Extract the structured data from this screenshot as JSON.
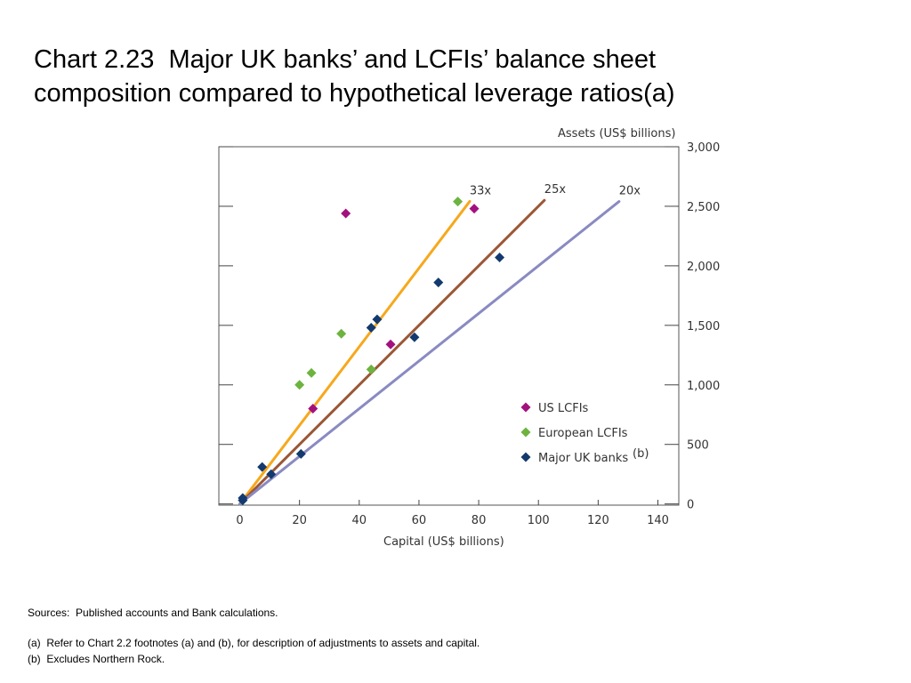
{
  "title": {
    "line1": "Chart 2.23  Major UK banks’ and LCFIs’ balance sheet",
    "line2": "composition compared to hypothetical leverage ratios(a)"
  },
  "chart_data": {
    "type": "scatter",
    "xlabel": "Capital (US$ billions)",
    "ylabel": "Assets (US$ billions)",
    "xlim": [
      -7,
      147
    ],
    "ylim": [
      -10,
      3000
    ],
    "x_ticks": [
      0,
      20,
      40,
      60,
      80,
      100,
      120,
      140
    ],
    "y_ticks": [
      0,
      500,
      1000,
      1500,
      2000,
      2500,
      3000
    ],
    "x_tick_labels": [
      "0",
      "20",
      "40",
      "60",
      "80",
      "100",
      "120",
      "140"
    ],
    "y_tick_labels": [
      "0",
      "500",
      "1,000",
      "1,500",
      "2,000",
      "2,500",
      "3,000"
    ],
    "y_axis_side": "right",
    "grid": false,
    "legend_position": "bottom-right",
    "lines": [
      {
        "name": "33x",
        "ratio": 33,
        "x_end": 77,
        "color": "#f6a81c"
      },
      {
        "name": "25x",
        "ratio": 25,
        "x_end": 102,
        "color": "#9b5736"
      },
      {
        "name": "20x",
        "ratio": 20,
        "x_end": 127,
        "color": "#8a8ac2"
      }
    ],
    "series": [
      {
        "name": "US LCFIs",
        "color": "#a3117e",
        "x": [
          35.5,
          78.5,
          50.5,
          24.5
        ],
        "y": [
          2440,
          2480,
          1340,
          800
        ]
      },
      {
        "name": "European LCFIs",
        "color": "#6db33f",
        "x": [
          73,
          34,
          44,
          24,
          20
        ],
        "y": [
          2540,
          1430,
          1130,
          1100,
          1000
        ]
      },
      {
        "name": "Major UK banks",
        "name_suffix": "(b)",
        "color": "#133a6e",
        "x": [
          87,
          66.5,
          46,
          44,
          58.5,
          7.5,
          20.5,
          10.5,
          1,
          1
        ],
        "y": [
          2070,
          1860,
          1550,
          1480,
          1400,
          310,
          420,
          250,
          50,
          30
        ]
      }
    ]
  },
  "footer": {
    "sources": "Sources:  Published accounts and Bank calculations.",
    "note_a": "(a)  Refer to Chart 2.2 footnotes (a) and (b), for description of adjustments to assets and capital.",
    "note_b": "(b)  Excludes Northern Rock."
  }
}
